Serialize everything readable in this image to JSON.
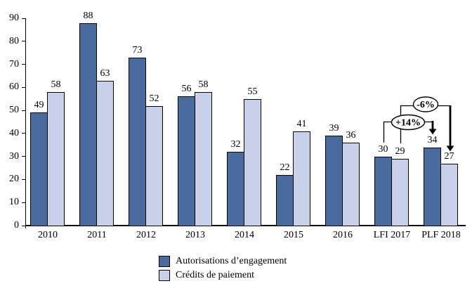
{
  "chart_data": {
    "type": "bar",
    "title": "",
    "xlabel": "",
    "ylabel": "",
    "categories": [
      "2010",
      "2011",
      "2012",
      "2013",
      "2014",
      "2015",
      "2016",
      "LFI 2017",
      "PLF 2018"
    ],
    "series": [
      {
        "name": "Autorisations d’engagement",
        "color": "#4A6B9D",
        "values": [
          49,
          88,
          73,
          56,
          32,
          22,
          39,
          30,
          34
        ]
      },
      {
        "name": "Crédits de paiement",
        "color": "#C9D1E9",
        "values": [
          58,
          63,
          52,
          58,
          55,
          41,
          36,
          29,
          27
        ]
      }
    ],
    "ylim": [
      0,
      90
    ],
    "ytick_step": 10,
    "grid": false,
    "legend_position": "bottom",
    "bar_border_color": "#000000",
    "axis_color": "#000000",
    "annotations": [
      {
        "label": "+14%",
        "series": "Autorisations d’engagement",
        "from_category": "LFI 2017",
        "to_category": "PLF 2018"
      },
      {
        "label": "-6%",
        "series": "Crédits de paiement",
        "from_category": "LFI 2017",
        "to_category": "PLF 2018"
      }
    ]
  }
}
